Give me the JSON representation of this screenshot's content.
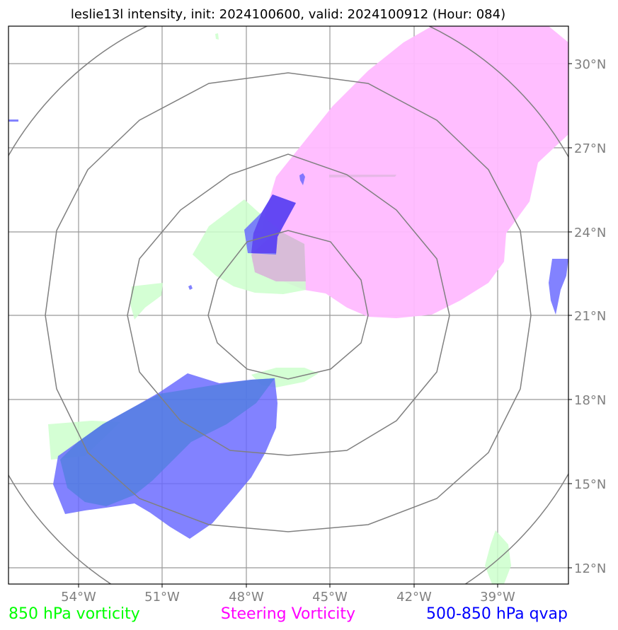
{
  "title": "leslie13l intensity, init: 2024100600, valid: 2024100912 (Hour: 084)",
  "lat_labels": [
    "30°N",
    "27°N",
    "24°N",
    "21°N",
    "18°N",
    "15°N",
    "12°N"
  ],
  "lon_labels": [
    "54°W",
    "51°W",
    "48°W",
    "45°W",
    "42°W",
    "39°W"
  ],
  "legend": [
    {
      "label": "850 hPa vorticity",
      "color": "#00ff00"
    },
    {
      "label": "Steering Vorticity",
      "color": "#ff00ff"
    },
    {
      "label": "500-850 hPa qvap",
      "color": "#0000ff"
    }
  ],
  "colors": {
    "vorticity_850": "#ccffcc",
    "steering_vorticity": "#ffbbff",
    "qvap": "#6666ff",
    "grid": "#999999",
    "range_rings": "#808080"
  }
}
